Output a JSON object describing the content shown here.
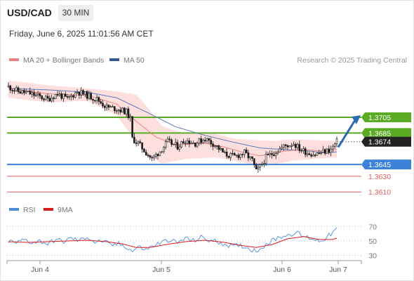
{
  "header": {
    "symbol": "USD/CAD",
    "timeframe": "30 MIN",
    "datetime": "Friday, June 6, 2025 11:01:56 AM CET"
  },
  "credit": "Research © 2025 Trading Central",
  "legend": {
    "ma20_label": "MA 20 + Bollinger Bands",
    "ma50_label": "MA 50",
    "rsi_label": "RSI",
    "ma9_label": "9MA"
  },
  "colors": {
    "candle": "#1a1a1a",
    "ma20": "#f08080",
    "bollinger_fill": "#fde0de",
    "ma50": "#5b7bbd",
    "resistance": "#5aab24",
    "support": "#3b82d8",
    "support_thin": "#e56060",
    "current": "#222222",
    "rsi": "#4f8ad8",
    "rsi_ma": "#d81e1e",
    "arrow": "#2b6cb0"
  },
  "chart_data": [
    {
      "type": "candlestick",
      "title": "USD/CAD 30 MIN",
      "x_tick_labels": [
        "Jun 4",
        "Jun 5",
        "Jun 6",
        "Jun 7"
      ],
      "ylim": [
        1.3595,
        1.3765
      ],
      "price_path": [
        [
          0,
          1.3744
        ],
        [
          5,
          1.3738
        ],
        [
          10,
          1.3736
        ],
        [
          15,
          1.3732
        ],
        [
          20,
          1.3728
        ],
        [
          25,
          1.3735
        ],
        [
          30,
          1.3728
        ],
        [
          35,
          1.3738
        ],
        [
          40,
          1.3733
        ],
        [
          45,
          1.3728
        ],
        [
          50,
          1.3718
        ],
        [
          55,
          1.3716
        ],
        [
          60,
          1.3712
        ],
        [
          62,
          1.3703
        ],
        [
          63,
          1.3678
        ],
        [
          66,
          1.3672
        ],
        [
          70,
          1.366
        ],
        [
          73,
          1.3652
        ],
        [
          77,
          1.3662
        ],
        [
          81,
          1.3674
        ],
        [
          86,
          1.3668
        ],
        [
          90,
          1.3676
        ],
        [
          95,
          1.3672
        ],
        [
          100,
          1.3678
        ],
        [
          105,
          1.367
        ],
        [
          110,
          1.3658
        ],
        [
          115,
          1.3655
        ],
        [
          120,
          1.366
        ],
        [
          124,
          1.365
        ],
        [
          126,
          1.3636
        ],
        [
          128,
          1.3642
        ],
        [
          131,
          1.3654
        ],
        [
          135,
          1.366
        ],
        [
          140,
          1.3668
        ],
        [
          145,
          1.3672
        ],
        [
          148,
          1.3665
        ],
        [
          152,
          1.366
        ],
        [
          156,
          1.3658
        ],
        [
          160,
          1.3661
        ],
        [
          164,
          1.3664
        ],
        [
          167,
          1.3674
        ]
      ],
      "ma20_path": [
        [
          0,
          1.3742
        ],
        [
          20,
          1.3735
        ],
        [
          40,
          1.3733
        ],
        [
          55,
          1.3722
        ],
        [
          65,
          1.37
        ],
        [
          75,
          1.368
        ],
        [
          85,
          1.367
        ],
        [
          100,
          1.3672
        ],
        [
          110,
          1.3667
        ],
        [
          120,
          1.366
        ],
        [
          128,
          1.3656
        ],
        [
          140,
          1.3662
        ],
        [
          150,
          1.3664
        ],
        [
          160,
          1.3662
        ],
        [
          167,
          1.3664
        ]
      ],
      "bollinger_upper_path": [
        [
          0,
          1.3752
        ],
        [
          20,
          1.3746
        ],
        [
          40,
          1.3742
        ],
        [
          55,
          1.3738
        ],
        [
          65,
          1.3734
        ],
        [
          70,
          1.372
        ],
        [
          78,
          1.3694
        ],
        [
          90,
          1.3684
        ],
        [
          105,
          1.3684
        ],
        [
          115,
          1.3678
        ],
        [
          125,
          1.3676
        ],
        [
          135,
          1.3675
        ],
        [
          145,
          1.3677
        ],
        [
          155,
          1.3676
        ],
        [
          167,
          1.3675
        ]
      ],
      "bollinger_lower_path": [
        [
          0,
          1.373
        ],
        [
          20,
          1.3724
        ],
        [
          40,
          1.3726
        ],
        [
          55,
          1.3708
        ],
        [
          63,
          1.368
        ],
        [
          70,
          1.3658
        ],
        [
          78,
          1.3646
        ],
        [
          90,
          1.3652
        ],
        [
          105,
          1.3654
        ],
        [
          115,
          1.365
        ],
        [
          125,
          1.3644
        ],
        [
          135,
          1.3645
        ],
        [
          145,
          1.365
        ],
        [
          155,
          1.3652
        ],
        [
          167,
          1.3654
        ]
      ],
      "ma50_path": [
        [
          0,
          1.3742
        ],
        [
          20,
          1.374
        ],
        [
          40,
          1.3737
        ],
        [
          55,
          1.373
        ],
        [
          70,
          1.3712
        ],
        [
          85,
          1.3693
        ],
        [
          100,
          1.3682
        ],
        [
          115,
          1.3673
        ],
        [
          128,
          1.3666
        ],
        [
          140,
          1.3664
        ],
        [
          150,
          1.3663
        ],
        [
          160,
          1.366
        ],
        [
          167,
          1.3661
        ]
      ],
      "levels": [
        {
          "value": 1.3705,
          "label": "1.3705",
          "kind": "resistance"
        },
        {
          "value": 1.3685,
          "label": "1.3685",
          "kind": "resistance"
        },
        {
          "value": 1.3674,
          "label": "1.3674",
          "kind": "current"
        },
        {
          "value": 1.3645,
          "label": "1.3645",
          "kind": "support"
        },
        {
          "value": 1.363,
          "label": "1.3630",
          "kind": "support_thin"
        },
        {
          "value": 1.361,
          "label": "1.3610",
          "kind": "support_thin"
        }
      ],
      "projection": {
        "from": 1.3667,
        "to": 1.3705
      }
    },
    {
      "type": "line",
      "title": "RSI",
      "ylim": [
        20,
        80
      ],
      "y_tick_labels": [
        "70",
        "50",
        "30"
      ],
      "y_ticks": [
        70,
        50,
        30
      ],
      "series": [
        {
          "name": "RSI",
          "path": [
            [
              0,
              50
            ],
            [
              4,
              47
            ],
            [
              8,
              52
            ],
            [
              12,
              48
            ],
            [
              16,
              50
            ],
            [
              20,
              46
            ],
            [
              24,
              52
            ],
            [
              28,
              49
            ],
            [
              32,
              54
            ],
            [
              36,
              50
            ],
            [
              40,
              56
            ],
            [
              44,
              48
            ],
            [
              48,
              50
            ],
            [
              52,
              44
            ],
            [
              56,
              46
            ],
            [
              60,
              42
            ],
            [
              63,
              36
            ],
            [
              66,
              42
            ],
            [
              70,
              38
            ],
            [
              74,
              44
            ],
            [
              78,
              48
            ],
            [
              82,
              52
            ],
            [
              86,
              47
            ],
            [
              90,
              54
            ],
            [
              94,
              50
            ],
            [
              98,
              55
            ],
            [
              102,
              51
            ],
            [
              106,
              49
            ],
            [
              110,
              46
            ],
            [
              114,
              42
            ],
            [
              118,
              44
            ],
            [
              122,
              40
            ],
            [
              126,
              36
            ],
            [
              130,
              44
            ],
            [
              134,
              50
            ],
            [
              138,
              56
            ],
            [
              142,
              58
            ],
            [
              146,
              62
            ],
            [
              150,
              56
            ],
            [
              154,
              54
            ],
            [
              158,
              50
            ],
            [
              162,
              55
            ],
            [
              165,
              62
            ],
            [
              167,
              66
            ]
          ]
        },
        {
          "name": "9MA",
          "path": [
            [
              0,
              49
            ],
            [
              10,
              48
            ],
            [
              20,
              49
            ],
            [
              30,
              50
            ],
            [
              40,
              51
            ],
            [
              50,
              49
            ],
            [
              58,
              46
            ],
            [
              65,
              41
            ],
            [
              72,
              41
            ],
            [
              80,
              45
            ],
            [
              90,
              49
            ],
            [
              100,
              51
            ],
            [
              110,
              48
            ],
            [
              118,
              44
            ],
            [
              126,
              41
            ],
            [
              134,
              45
            ],
            [
              142,
              53
            ],
            [
              150,
              56
            ],
            [
              158,
              52
            ],
            [
              165,
              52
            ],
            [
              167,
              54
            ]
          ]
        }
      ]
    }
  ]
}
